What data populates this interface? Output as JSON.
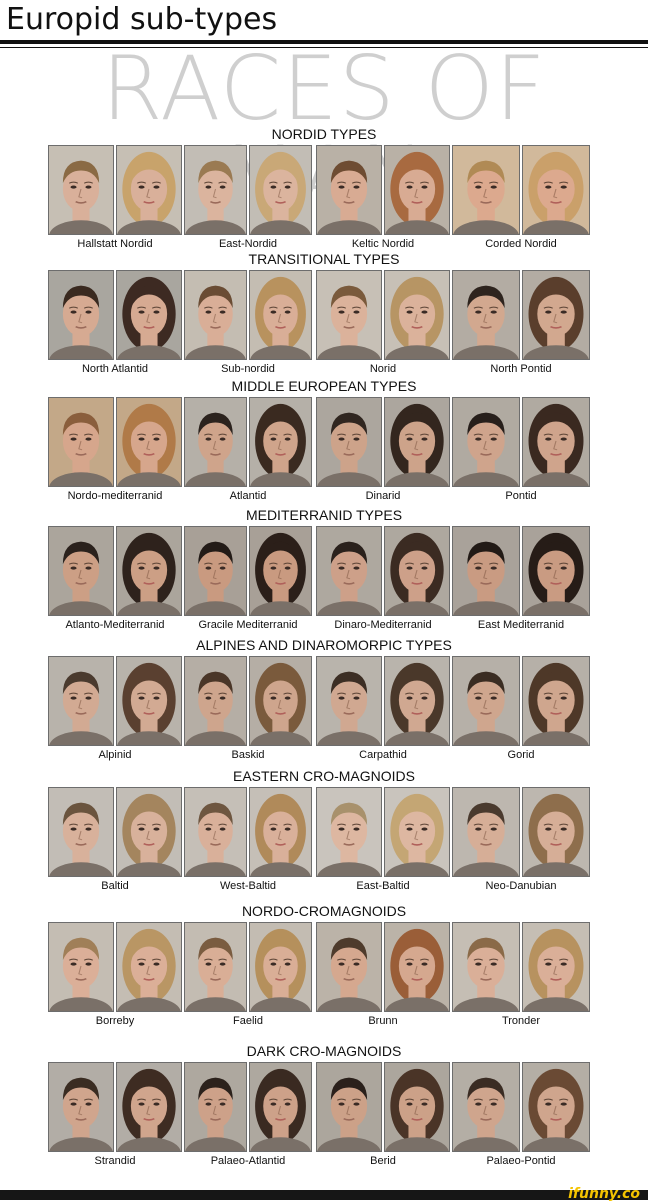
{
  "header": {
    "title": "Europid sub-types",
    "watermark": "RACES OF MAN"
  },
  "sections": [
    {
      "title": "NORDID TYPES",
      "groups": [
        {
          "label": "Hallstatt Nordid",
          "male_hair": "#8a6a44",
          "female_hair": "#c8a36b",
          "skin": "#d9b09a",
          "bg": "#c6bfb4"
        },
        {
          "label": "East-Nordid",
          "male_hair": "#9a7a52",
          "female_hair": "#c9a877",
          "skin": "#dbb49e",
          "bg": "#c2bdb5"
        },
        {
          "label": "Keltic Nordid",
          "male_hair": "#6e4c32",
          "female_hair": "#a86a40",
          "skin": "#d8ab93",
          "bg": "#b9b1a6"
        },
        {
          "label": "Corded Nordid",
          "male_hair": "#b08a55",
          "female_hair": "#caa06a",
          "skin": "#dca98e",
          "bg": "#d1b99b"
        }
      ]
    },
    {
      "title": "TRANSITIONAL TYPES",
      "groups": [
        {
          "label": "North Atlantid",
          "male_hair": "#3a2a20",
          "female_hair": "#3d2a22",
          "skin": "#d6aa92",
          "bg": "#a9a69f"
        },
        {
          "label": "Sub-nordid",
          "male_hair": "#6a4c34",
          "female_hair": "#b8925e",
          "skin": "#d9ae97",
          "bg": "#c4bdb2"
        },
        {
          "label": "Norid",
          "male_hair": "#7a5a3c",
          "female_hair": "#b79564",
          "skin": "#dbb29b",
          "bg": "#c7c0b6"
        },
        {
          "label": "North Pontid",
          "male_hair": "#2e241e",
          "female_hair": "#5a3e2c",
          "skin": "#d2a88f",
          "bg": "#b3aca3"
        }
      ]
    },
    {
      "title": "MIDDLE EUROPEAN TYPES",
      "groups": [
        {
          "label": "Nordo-mediterranid",
          "male_hair": "#8a5e3c",
          "female_hair": "#b07a48",
          "skin": "#d6a68c",
          "bg": "#c3a888"
        },
        {
          "label": "Atlantid",
          "male_hair": "#2c231e",
          "female_hair": "#3a2a20",
          "skin": "#cfa48b",
          "bg": "#b5b0a8"
        },
        {
          "label": "Dinarid",
          "male_hair": "#302620",
          "female_hair": "#33261e",
          "skin": "#cda38a",
          "bg": "#aca69e"
        },
        {
          "label": "Pontid",
          "male_hair": "#271f1b",
          "female_hair": "#3a2920",
          "skin": "#cfa48c",
          "bg": "#b0aaa1"
        }
      ]
    },
    {
      "title": "MEDITERRANID TYPES",
      "groups": [
        {
          "label": "Atlanto-Mediterranid",
          "male_hair": "#2a211c",
          "female_hair": "#2e221c",
          "skin": "#cc9f85",
          "bg": "#aba59c"
        },
        {
          "label": "Gracile Mediterranid",
          "male_hair": "#231b17",
          "female_hair": "#2b1f19",
          "skin": "#c99a80",
          "bg": "#a8a097"
        },
        {
          "label": "Dinaro-Mediterranid",
          "male_hair": "#2a211c",
          "female_hair": "#3b2b22",
          "skin": "#cda089",
          "bg": "#aea89f"
        },
        {
          "label": "East Mediterranid",
          "male_hair": "#221a16",
          "female_hair": "#261c17",
          "skin": "#c99b82",
          "bg": "#a9a29a"
        }
      ]
    },
    {
      "title": "ALPINES AND DINAROMORPIC TYPES",
      "groups": [
        {
          "label": "Alpinid",
          "male_hair": "#4a3a2e",
          "female_hair": "#5a4030",
          "skin": "#d2aa93",
          "bg": "#b8b3ab"
        },
        {
          "label": "Baskid",
          "male_hair": "#4a3628",
          "female_hair": "#7a5a3c",
          "skin": "#cea58d",
          "bg": "#b5aea5"
        },
        {
          "label": "Carpathid",
          "male_hair": "#3c2e24",
          "female_hair": "#4a382a",
          "skin": "#d0a891",
          "bg": "#b9b4ac"
        },
        {
          "label": "Gorid",
          "male_hair": "#3a2c22",
          "female_hair": "#4e3828",
          "skin": "#cfa68e",
          "bg": "#b6b0a8"
        }
      ]
    },
    {
      "title": "EASTERN CRO-MAGNOIDS",
      "groups": [
        {
          "label": "Baltid",
          "male_hair": "#6a543e",
          "female_hair": "#a4855e",
          "skin": "#d8b19b",
          "bg": "#c2bdb6"
        },
        {
          "label": "West-Baltid",
          "male_hair": "#6e5640",
          "female_hair": "#b08a5a",
          "skin": "#d9b09a",
          "bg": "#c5bfb7"
        },
        {
          "label": "East-Baltid",
          "male_hair": "#a8916c",
          "female_hair": "#c4a674",
          "skin": "#ddb7a1",
          "bg": "#c9c4bd"
        },
        {
          "label": "Neo-Danubian",
          "male_hair": "#4a3a2e",
          "female_hair": "#8e6e4c",
          "skin": "#d6ae97",
          "bg": "#bdb7af"
        }
      ]
    },
    {
      "title": "NORDO-CROMAGNOIDS",
      "groups": [
        {
          "label": "Borreby",
          "male_hair": "#a07f58",
          "female_hair": "#b99664",
          "skin": "#dbaf98",
          "bg": "#c4bdb3"
        },
        {
          "label": "Faelid",
          "male_hair": "#7a5c40",
          "female_hair": "#b5905c",
          "skin": "#d9ae96",
          "bg": "#c3bcb2"
        },
        {
          "label": "Brunn",
          "male_hair": "#4e3b2c",
          "female_hair": "#9a5e38",
          "skin": "#d5a88f",
          "bg": "#bbb3a8"
        },
        {
          "label": "Tronder",
          "male_hair": "#8a6a48",
          "female_hair": "#b7925f",
          "skin": "#daaf98",
          "bg": "#c5beb4"
        }
      ]
    },
    {
      "title": "DARK CRO-MAGNOIDS",
      "groups": [
        {
          "label": "Strandid",
          "male_hair": "#3a2c22",
          "female_hair": "#3e2c22",
          "skin": "#d0a58d",
          "bg": "#b2ada6"
        },
        {
          "label": "Palaeo-Atlantid",
          "male_hair": "#2c221c",
          "female_hair": "#3a2a21",
          "skin": "#cda189",
          "bg": "#aea89f"
        },
        {
          "label": "Berid",
          "male_hair": "#2a201b",
          "female_hair": "#4a3427",
          "skin": "#cca188",
          "bg": "#aca69d"
        },
        {
          "label": "Palaeo-Pontid",
          "male_hair": "#3a2c23",
          "female_hair": "#6a4a34",
          "skin": "#cfa58d",
          "bg": "#b4aea5"
        }
      ]
    }
  ],
  "footer": {
    "brand": "ifunny.co"
  }
}
